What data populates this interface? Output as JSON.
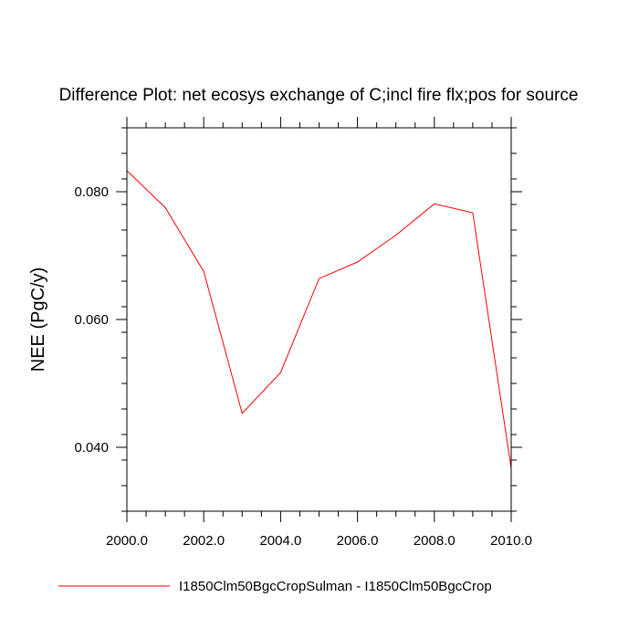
{
  "chart_data": {
    "type": "line",
    "title": "Difference Plot: net ecosys exchange of C;incl fire flx;pos for source",
    "xlabel": "",
    "ylabel": "NEE  (PgC/y)",
    "xlim": [
      2000,
      2010
    ],
    "ylim": [
      0.03,
      0.09
    ],
    "x_ticks": [
      2000,
      2002,
      2004,
      2006,
      2008,
      2010
    ],
    "x_tick_labels": [
      "2000.0",
      "2002.0",
      "2004.0",
      "2006.0",
      "2008.0",
      "2010.0"
    ],
    "y_ticks": [
      0.04,
      0.06,
      0.08
    ],
    "y_tick_labels": [
      "0.040",
      "0.060",
      "0.080"
    ],
    "grid": false,
    "legend_position": "bottom",
    "series": [
      {
        "name": "I1850Clm50BgcCropSulman - I1850Clm50BgcCrop",
        "color": "#ff0000",
        "x": [
          2000,
          2001,
          2002,
          2003,
          2004,
          2005,
          2006,
          2007,
          2008,
          2009,
          2010
        ],
        "values": [
          0.0833,
          0.0775,
          0.0675,
          0.0453,
          0.0517,
          0.0664,
          0.069,
          0.0732,
          0.0781,
          0.0767,
          0.0367
        ]
      }
    ]
  }
}
